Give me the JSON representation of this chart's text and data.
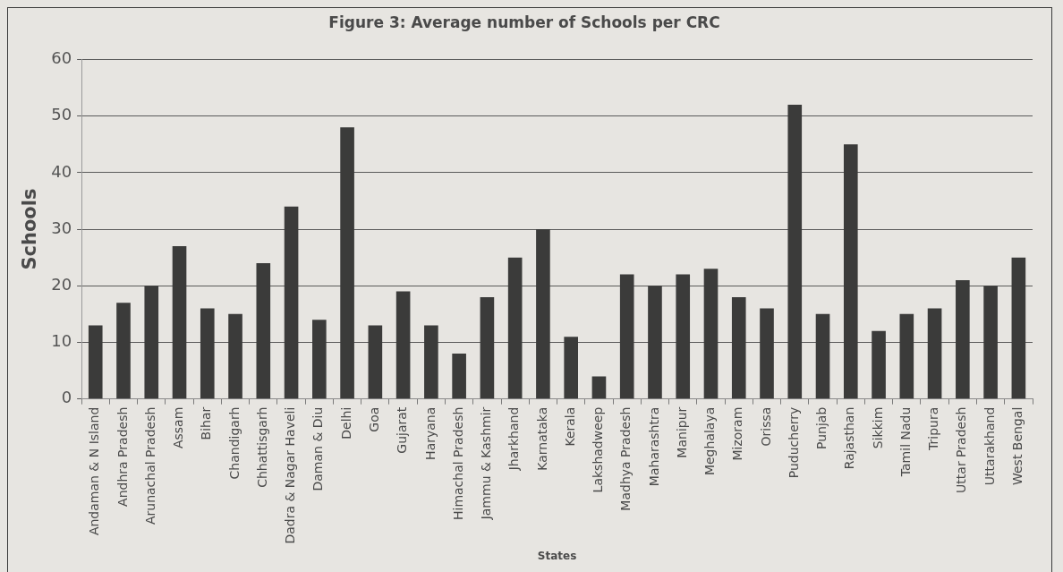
{
  "chart_data": {
    "type": "bar",
    "title": "Figure 3: Average number of Schools per CRC",
    "xlabel": "States",
    "ylabel": "Schools",
    "categories": [
      "Andaman & N Island",
      "Andhra Pradesh",
      "Arunachal Pradesh",
      "Assam",
      "Bihar",
      "Chandigarh",
      "Chhattisgarh",
      "Dadra & Nagar Haveli",
      "Daman & Diu",
      "Delhi",
      "Goa",
      "Gujarat",
      "Haryana",
      "Himachal Pradesh",
      "Jammu & Kashmir",
      "Jharkhand",
      "Karnataka",
      "Kerala",
      "Lakshadweep",
      "Madhya Pradesh",
      "Maharashtra",
      "Manipur",
      "Meghalaya",
      "Mizoram",
      "Orissa",
      "Puducherry",
      "Punjab",
      "Rajasthan",
      "Sikkim",
      "Tamil Nadu",
      "Tripura",
      "Uttar Pradesh",
      "Uttarakhand",
      "West Bengal"
    ],
    "values": [
      13,
      17,
      20,
      27,
      16,
      15,
      24,
      34,
      14,
      48,
      13,
      19,
      13,
      8,
      18,
      25,
      30,
      11,
      4,
      22,
      20,
      22,
      23,
      18,
      16,
      52,
      15,
      45,
      12,
      15,
      16,
      21,
      20,
      25
    ],
    "color": "#3b3b3a",
    "ylim": [
      0,
      60
    ],
    "yticks": [
      0,
      10,
      20,
      30,
      40,
      50,
      60
    ],
    "grid": "y"
  }
}
